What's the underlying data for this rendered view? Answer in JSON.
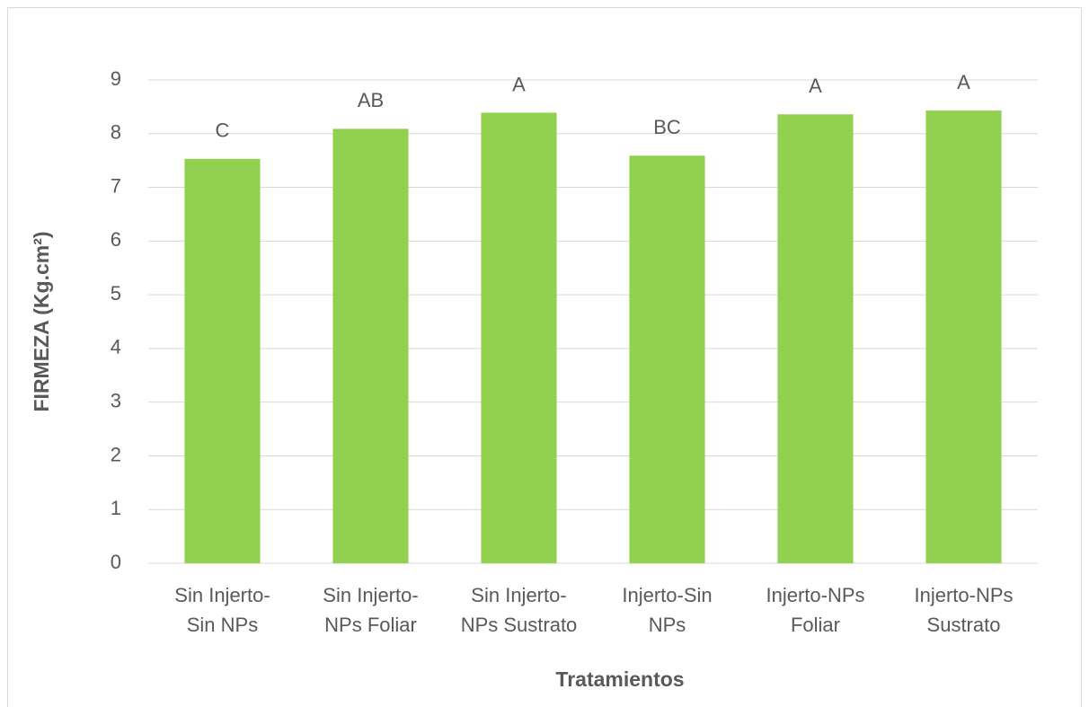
{
  "chart_data": {
    "type": "bar",
    "x_label": "Tratamientos",
    "y_label": "FIRMEZA (Kg.cm²)",
    "categories": [
      [
        "Sin Injerto-",
        "Sin NPs"
      ],
      [
        "Sin Injerto-",
        "NPs Foliar"
      ],
      [
        "Sin Injerto-",
        "NPs Sustrato"
      ],
      [
        "Injerto-Sin",
        "NPs"
      ],
      [
        "Injerto-NPs",
        "Foliar"
      ],
      [
        "Injerto-NPs",
        "Sustrato"
      ]
    ],
    "values": [
      7.53,
      8.09,
      8.39,
      7.59,
      8.36,
      8.43
    ],
    "annotations": [
      "C",
      "AB",
      "A",
      "BC",
      "A",
      "A"
    ],
    "color": "#92d050",
    "ylim": [
      0,
      9
    ],
    "yticks": [
      0,
      1,
      2,
      3,
      4,
      5,
      6,
      7,
      8,
      9
    ],
    "grid": true
  }
}
